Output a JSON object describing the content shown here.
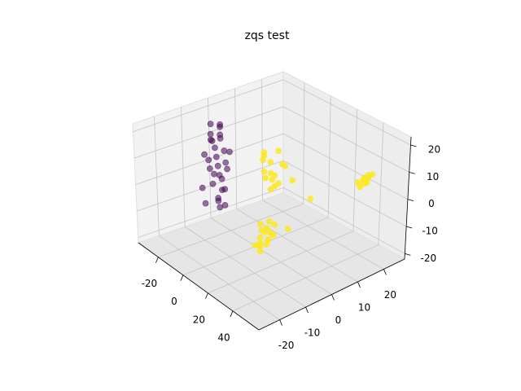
{
  "chart_data": {
    "type": "scatter3d",
    "title": "zqs test",
    "xlim": [
      -36,
      61
    ],
    "ylim": [
      -28,
      28
    ],
    "zlim": [
      -22,
      23
    ],
    "xticks": [
      -20,
      0,
      20,
      40
    ],
    "yticks": [
      -20,
      -10,
      0,
      10,
      20
    ],
    "zticks": [
      -20,
      -10,
      0,
      10,
      20
    ],
    "grid": true,
    "series": [
      {
        "color": "#440154",
        "x": [
          -22,
          -19,
          -18,
          -21,
          -17,
          -20,
          -23,
          -19,
          -16,
          -21,
          -18,
          -20,
          -22,
          -17,
          -19,
          -21,
          -18,
          -20,
          -16,
          -22,
          -19,
          -21,
          -18,
          -20,
          -17,
          -19,
          -23,
          -20,
          -18,
          -21
        ],
        "y": [
          -6,
          -4,
          -8,
          -3,
          -5,
          -7,
          -2,
          -6,
          -4,
          -9,
          -1,
          -5,
          -7,
          -3,
          -8,
          -4,
          -2,
          -6,
          -5,
          -3,
          -7,
          -10,
          -4,
          -2,
          -6,
          -5,
          -8,
          -4,
          -3,
          -6
        ],
        "z": [
          19,
          18,
          17,
          18,
          16,
          14,
          12,
          11,
          10,
          9,
          8,
          7,
          6,
          5,
          4,
          3,
          2,
          1,
          0,
          -1,
          -2,
          -3,
          -5,
          -6,
          -7,
          -9,
          -10,
          -12,
          -11,
          13
        ]
      },
      {
        "color": "#fde725",
        "x": [
          14,
          16,
          18,
          15,
          17,
          13,
          19,
          16,
          15,
          18,
          12,
          17,
          16,
          20,
          14,
          15,
          18,
          16,
          13,
          17,
          -15,
          -13,
          -17,
          -14,
          -16,
          -12,
          -15,
          -18,
          -13,
          -14,
          -16,
          -15,
          -12,
          -17,
          -14,
          0,
          10,
          5,
          52,
          54,
          50,
          55,
          53,
          51,
          56,
          53,
          52,
          54,
          50,
          55
        ],
        "y": [
          -5,
          -3,
          -4,
          -6,
          -2,
          -4,
          -5,
          -1,
          -3,
          -7,
          -4,
          -2,
          -6,
          -3,
          -5,
          -2,
          -4,
          -8,
          -3,
          -1,
          13,
          15,
          12,
          14,
          11,
          16,
          13,
          12,
          15,
          10,
          14,
          13,
          17,
          11,
          14,
          14,
          16,
          10,
          15,
          16,
          14,
          17,
          15,
          16,
          14,
          16,
          17,
          15,
          15,
          14
        ],
        "z": [
          -15,
          -14,
          -13,
          -15,
          -12,
          -11,
          -14,
          -13,
          -10,
          -16,
          -9,
          -12,
          -15,
          -11,
          -13,
          -8,
          -10,
          -14,
          -12,
          -9,
          -10,
          -8,
          -6,
          -5,
          -3,
          -1,
          0,
          2,
          4,
          5,
          -7,
          -4,
          -2,
          1,
          -9,
          -3,
          -8,
          -18,
          10,
          11,
          9,
          12,
          10,
          8,
          11,
          9,
          11,
          10,
          7,
          12
        ]
      }
    ]
  }
}
